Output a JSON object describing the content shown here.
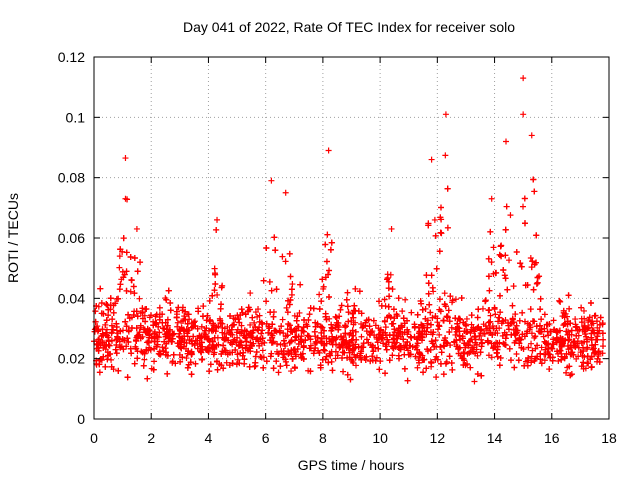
{
  "chart_data": {
    "type": "scatter",
    "title": "Day 041 of 2022, Rate Of TEC Index for receiver solo",
    "xlabel": "GPS time / hours",
    "ylabel": "ROTI / TECUs",
    "xlim": [
      0,
      18
    ],
    "ylim": [
      0,
      0.12
    ],
    "xticks": [
      0,
      2,
      4,
      6,
      8,
      10,
      12,
      14,
      16,
      18
    ],
    "yticks": [
      0,
      0.02,
      0.04,
      0.06,
      0.08,
      0.1,
      0.12
    ],
    "xtick_labels": [
      "0",
      "2",
      "4",
      "6",
      "8",
      "10",
      "12",
      "14",
      "16",
      "18"
    ],
    "ytick_labels": [
      "0",
      "0.02",
      "0.04",
      "0.06",
      "0.08",
      "0.1",
      "0.12"
    ],
    "grid": true,
    "marker": "+",
    "color": "#ff0000",
    "series": [
      {
        "name": "ROTI",
        "data_range_hours": [
          0,
          17.8
        ],
        "typical_range": [
          0.005,
          0.045
        ],
        "peaks": [
          {
            "x": 1.1,
            "y": 0.0865
          },
          {
            "x": 1.1,
            "y": 0.073
          },
          {
            "x": 1.5,
            "y": 0.063
          },
          {
            "x": 4.3,
            "y": 0.066
          },
          {
            "x": 6.2,
            "y": 0.079
          },
          {
            "x": 6.7,
            "y": 0.075
          },
          {
            "x": 8.2,
            "y": 0.089
          },
          {
            "x": 10.4,
            "y": 0.063
          },
          {
            "x": 11.8,
            "y": 0.086
          },
          {
            "x": 12.3,
            "y": 0.101
          },
          {
            "x": 13.9,
            "y": 0.073
          },
          {
            "x": 14.4,
            "y": 0.092
          },
          {
            "x": 15.0,
            "y": 0.113
          },
          {
            "x": 15.0,
            "y": 0.101
          },
          {
            "x": 15.3,
            "y": 0.094
          }
        ]
      }
    ]
  }
}
